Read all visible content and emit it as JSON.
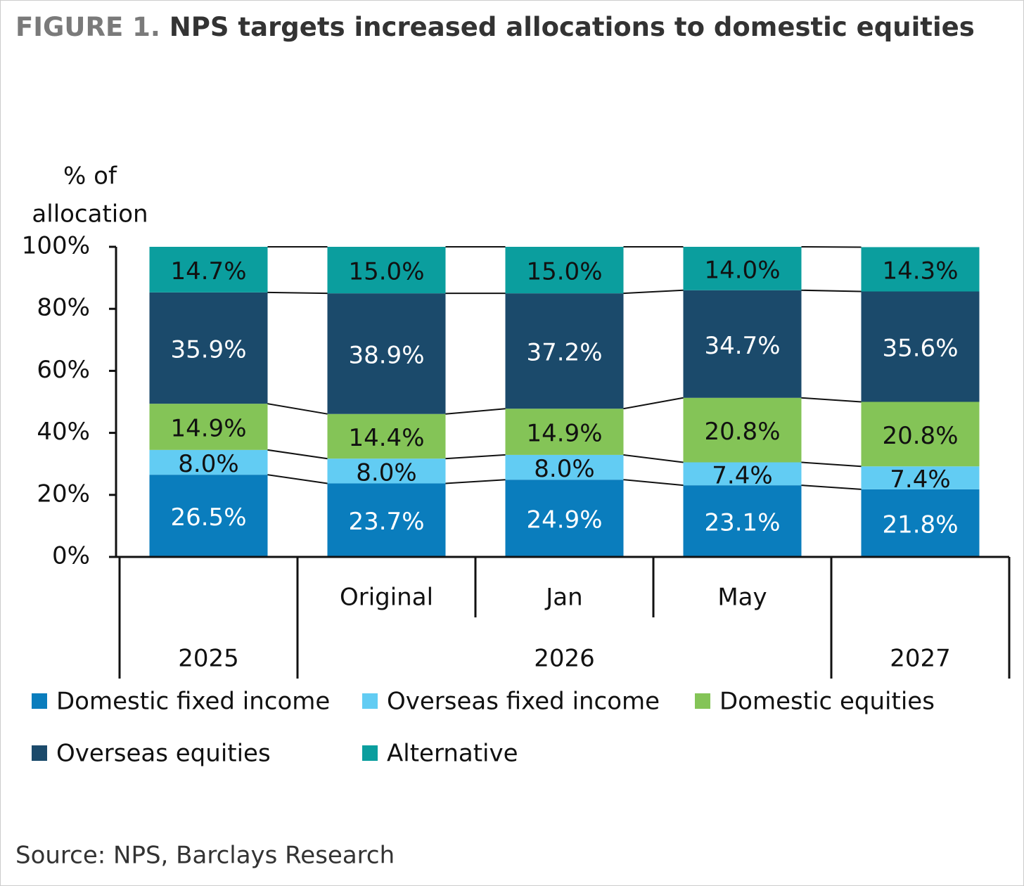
{
  "chart_data": {
    "type": "stacked_bar",
    "figure_label": "FIGURE 1.",
    "title": "NPS targets increased allocations to domestic equities",
    "ylabel": [
      "% of",
      "allocation"
    ],
    "source": "Source: NPS, Barclays Research",
    "groups": [
      {
        "label": "2025",
        "subcategories": [
          null
        ]
      },
      {
        "label": "2026",
        "subcategories": [
          "Original",
          "Jan",
          "May"
        ]
      },
      {
        "label": "2027",
        "subcategories": [
          null
        ]
      }
    ],
    "ylim": [
      0,
      100
    ],
    "yticks": [
      {
        "value": 0,
        "label": "0%"
      },
      {
        "value": 20,
        "label": "20%"
      },
      {
        "value": 40,
        "label": "40%"
      },
      {
        "value": 60,
        "label": "60%"
      },
      {
        "value": 80,
        "label": "80%"
      },
      {
        "value": 100,
        "label": "100%"
      }
    ],
    "series": [
      {
        "name": "Domestic fixed income",
        "color": "#0a7dbd",
        "values": [
          26.5,
          23.7,
          24.9,
          23.1,
          21.8
        ],
        "value_labels": [
          "26.5%",
          "23.7%",
          "24.9%",
          "23.1%",
          "21.8%"
        ]
      },
      {
        "name": "Overseas fixed income",
        "color": "#62ccf3",
        "values": [
          8.0,
          8.0,
          8.0,
          7.4,
          7.4
        ],
        "value_labels": [
          "8.0%",
          "8.0%",
          "8.0%",
          "7.4%",
          "7.4%"
        ]
      },
      {
        "name": "Domestic equities",
        "color": "#84c457",
        "values": [
          14.9,
          14.4,
          14.9,
          20.8,
          20.8
        ],
        "value_labels": [
          "14.9%",
          "14.4%",
          "14.9%",
          "20.8%",
          "20.8%"
        ]
      },
      {
        "name": "Overseas equities",
        "color": "#1b4a6b",
        "values": [
          35.9,
          38.9,
          37.2,
          34.7,
          35.6
        ],
        "value_labels": [
          "35.9%",
          "38.9%",
          "37.2%",
          "34.7%",
          "35.6%"
        ]
      },
      {
        "name": "Alternative",
        "color": "#0b9e9e",
        "values": [
          14.7,
          15.0,
          15.0,
          14.0,
          14.3
        ],
        "value_labels": [
          "14.7%",
          "15.0%",
          "15.0%",
          "14.0%",
          "14.3%"
        ]
      }
    ]
  }
}
